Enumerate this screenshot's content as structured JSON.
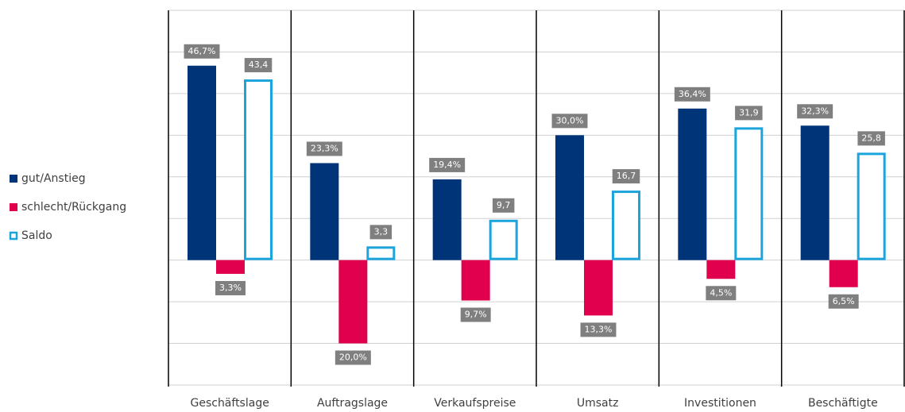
{
  "chart_data": {
    "type": "bar",
    "categories": [
      "Geschäftslage",
      "Auftragslage",
      "Verkaufspreise",
      "Umsatz",
      "Investitionen",
      "Beschäftigte"
    ],
    "series": [
      {
        "name": "gut/Anstieg",
        "color": "#003478",
        "values": [
          46.7,
          23.3,
          19.4,
          30.0,
          36.4,
          32.3
        ],
        "value_labels": [
          "46,7%",
          "23,3%",
          "19,4%",
          "30,0%",
          "36,4%",
          "32,3%"
        ]
      },
      {
        "name": "schlecht/Rückgang",
        "color": "#e0004d",
        "values": [
          -3.3,
          -20.0,
          -9.7,
          -13.3,
          -4.5,
          -6.5
        ],
        "value_labels": [
          "3,3%",
          "20,0%",
          "9,7%",
          "13,3%",
          "4,5%",
          "6,5%"
        ]
      },
      {
        "name": "Saldo",
        "color": "#1ca5dc",
        "outline": true,
        "values": [
          43.4,
          3.3,
          9.7,
          16.7,
          31.9,
          25.8
        ],
        "value_labels": [
          "43,4",
          "3,3",
          "9,7",
          "16,7",
          "31,9",
          "25,8"
        ]
      }
    ],
    "ylim": [
      -30,
      60
    ],
    "yticks": [
      -30,
      -20,
      -10,
      0,
      10,
      20,
      30,
      40,
      50,
      60
    ],
    "grid": true,
    "legend": "left"
  }
}
